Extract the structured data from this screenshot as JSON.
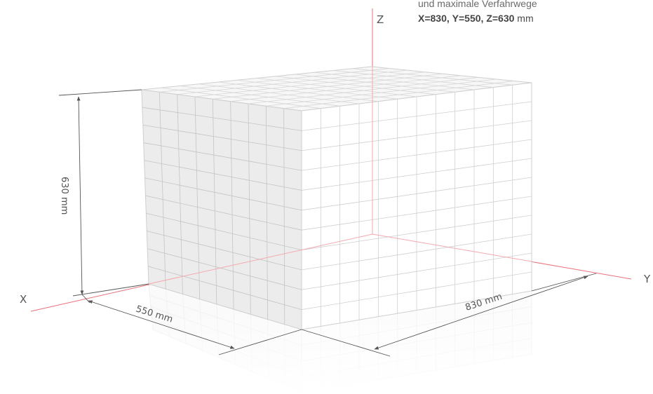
{
  "caption": {
    "line1": "und maximale Verfahrwege",
    "value_x": "X=830,",
    "value_y": "Y=550,",
    "value_z": "Z=630",
    "unit": "mm"
  },
  "axes": {
    "x_label": "X",
    "y_label": "Y",
    "z_label": "Z",
    "color": "#e8707a"
  },
  "dimensions": {
    "depth_label": "550 mm",
    "width_label": "830 mm",
    "height_label": "630 mm"
  },
  "grid": {
    "front_columns": 12,
    "side_columns": 9,
    "rows": 11
  },
  "colors": {
    "grid_line": "#cfcfcf",
    "front_face": "#ffffff",
    "side_face": "#ececec",
    "top_face": "#f7f7f7",
    "dimension_line": "#555555"
  }
}
